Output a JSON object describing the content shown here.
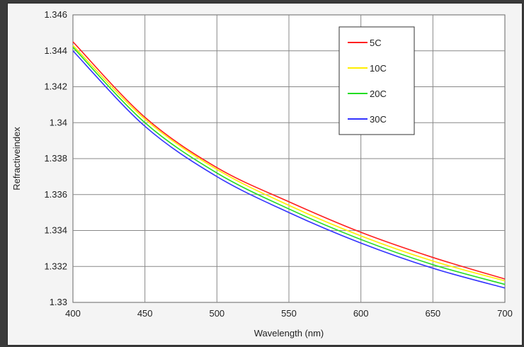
{
  "chart_data": {
    "type": "line",
    "title": "",
    "xlabel": "Wavelength (nm)",
    "ylabel": "Refractiveindex",
    "xlim": [
      400,
      700
    ],
    "ylim": [
      1.33,
      1.346
    ],
    "x_ticks": [
      "400",
      "450",
      "500",
      "550",
      "600",
      "650",
      "700"
    ],
    "y_ticks": [
      "1.33",
      "1.332",
      "1.334",
      "1.336",
      "1.338",
      "1.34",
      "1.342",
      "1.344",
      "1.346"
    ],
    "grid": true,
    "legend_position": "top-right",
    "x": [
      400,
      450,
      500,
      550,
      600,
      650,
      700
    ],
    "series": [
      {
        "name": "5C",
        "color": "#ff2020",
        "values": [
          1.3445,
          1.3403,
          1.3375,
          1.3356,
          1.3339,
          1.3325,
          1.3313
        ]
      },
      {
        "name": "10C",
        "color": "#ffee00",
        "values": [
          1.3443,
          1.3402,
          1.3374,
          1.3354,
          1.3337,
          1.3323,
          1.3312
        ]
      },
      {
        "name": "20C",
        "color": "#22dd22",
        "values": [
          1.3442,
          1.34,
          1.3372,
          1.3352,
          1.3335,
          1.3321,
          1.331
        ]
      },
      {
        "name": "30C",
        "color": "#3333ff",
        "values": [
          1.344,
          1.3398,
          1.337,
          1.335,
          1.3333,
          1.3319,
          1.3308
        ]
      }
    ]
  }
}
